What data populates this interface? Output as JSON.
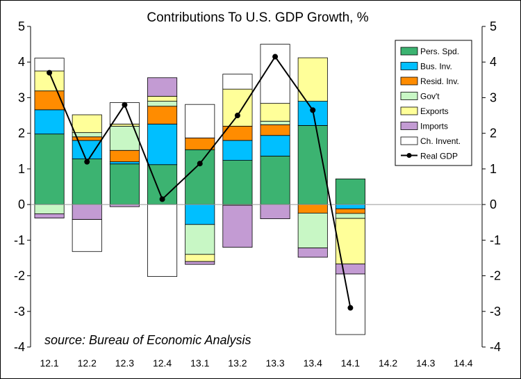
{
  "chart_data": {
    "type": "bar",
    "title": "Contributions To U.S. GDP Growth, %",
    "annotation": "source: Bureau of Economic Analysis",
    "xlabel": "",
    "ylabel": "",
    "ylim": [
      -4,
      5
    ],
    "yticks": [
      "5",
      "4",
      "3",
      "2",
      "1",
      "0",
      "-1",
      "-2",
      "-3",
      "-4"
    ],
    "ytick_values": [
      5,
      4,
      3,
      2,
      1,
      0,
      -1,
      -2,
      -3,
      -4
    ],
    "categories": [
      "12.1",
      "12.2",
      "12.3",
      "12.4",
      "13.1",
      "13.2",
      "13.3",
      "13.4",
      "14.1",
      "14.2",
      "14.3",
      "14.4"
    ],
    "stacked": true,
    "grid": false,
    "legend_position": "top-right",
    "series": [
      {
        "name": "Pers. Spd.",
        "color": "#3cb371",
        "values": [
          1.98,
          1.28,
          1.14,
          1.12,
          1.54,
          1.24,
          1.36,
          2.22,
          0.72,
          null,
          null,
          null
        ]
      },
      {
        "name": "Bus. Inv.",
        "color": "#00bfff",
        "values": [
          0.68,
          0.52,
          0.06,
          1.14,
          -0.56,
          0.56,
          0.58,
          0.68,
          -0.12,
          null,
          null,
          null
        ]
      },
      {
        "name": "Resid. Inv.",
        "color": "#ff8c00",
        "values": [
          0.53,
          0.1,
          0.32,
          0.5,
          0.33,
          0.4,
          0.3,
          -0.24,
          -0.13,
          null,
          null,
          null
        ]
      },
      {
        "name": "Gov't",
        "color": "#c8f7c5",
        "values": [
          -0.26,
          0.12,
          0.68,
          0.14,
          -0.84,
          -0.02,
          0.1,
          -0.98,
          -0.14,
          null,
          null,
          null
        ]
      },
      {
        "name": "Exports",
        "color": "#ffff99",
        "values": [
          0.56,
          0.5,
          0.06,
          0.14,
          -0.2,
          1.04,
          0.5,
          1.22,
          -1.28,
          null,
          null,
          null
        ]
      },
      {
        "name": "Imports",
        "color": "#c39bd3",
        "values": [
          -0.12,
          -0.42,
          -0.06,
          0.52,
          -0.08,
          -1.18,
          -0.4,
          -0.26,
          -0.28,
          null,
          null,
          null
        ]
      },
      {
        "name": "Ch. Invent.",
        "color": "#ffffff",
        "values": [
          0.36,
          -0.9,
          0.6,
          -2.02,
          0.94,
          0.42,
          1.66,
          0.0,
          -1.7,
          null,
          null,
          null
        ]
      }
    ],
    "line_series": {
      "name": "Real GDP",
      "color": "#000000",
      "values": [
        3.7,
        1.2,
        2.8,
        0.15,
        1.15,
        2.5,
        4.15,
        2.65,
        -2.9,
        null,
        null,
        null
      ]
    }
  }
}
